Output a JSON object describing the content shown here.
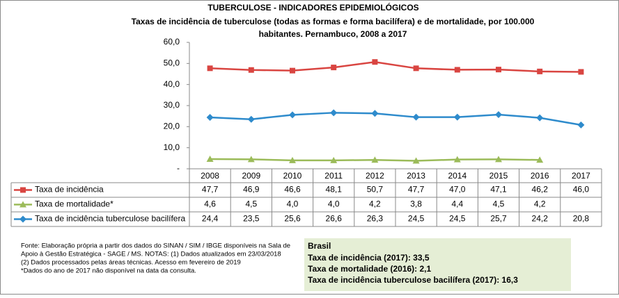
{
  "chart_data": {
    "type": "line",
    "title": "TUBERCULOSE - INDICADORES EPIDEMIOLÓGICOS",
    "subtitle": [
      "Taxas de incidência de tuberculose (todas as formas e forma bacilífera) e de mortalidade,  por 100.000",
      "habitantes. Pernambuco, 2008 a 2017"
    ],
    "categories": [
      "2008",
      "2009",
      "2010",
      "2011",
      "2012",
      "2013",
      "2014",
      "2015",
      "2016",
      "2017"
    ],
    "series": [
      {
        "name": "Taxa de incidência",
        "color": "#d94541",
        "marker": "square",
        "values": [
          47.7,
          46.9,
          46.6,
          48.1,
          50.7,
          47.7,
          47.0,
          47.1,
          46.2,
          46.0
        ],
        "value_labels": [
          "47,7",
          "46,9",
          "46,6",
          "48,1",
          "50,7",
          "47,7",
          "47,0",
          "47,1",
          "46,2",
          "46,0"
        ]
      },
      {
        "name": "Taxa de mortalidade*",
        "color": "#9bbb59",
        "marker": "triangle",
        "values": [
          4.6,
          4.5,
          4.0,
          4.0,
          4.2,
          3.8,
          4.4,
          4.5,
          4.2,
          null
        ],
        "value_labels": [
          "4,6",
          "4,5",
          "4,0",
          "4,0",
          "4,2",
          "3,8",
          "4,4",
          "4,5",
          "4,2",
          null
        ]
      },
      {
        "name": "Taxa de incidência tuberculose bacilífera",
        "color": "#2e8bcc",
        "marker": "diamond",
        "values": [
          24.4,
          23.5,
          25.6,
          26.6,
          26.3,
          24.5,
          24.5,
          25.7,
          24.2,
          20.8
        ],
        "value_labels": [
          "24,4",
          "23,5",
          "25,6",
          "26,6",
          "26,3",
          "24,5",
          "24,5",
          "25,7",
          "24,2",
          "20,8"
        ]
      }
    ],
    "ylim": [
      0,
      60
    ],
    "yticks": [
      {
        "value": 0,
        "label": "-"
      },
      {
        "value": 10,
        "label": "10,0"
      },
      {
        "value": 20,
        "label": "20,0"
      },
      {
        "value": 30,
        "label": "30,0"
      },
      {
        "value": 40,
        "label": "40,0"
      },
      {
        "value": 50,
        "label": "50,0"
      },
      {
        "value": 60,
        "label": "60,0"
      }
    ],
    "grid": false,
    "footnotes": [
      "Fonte: Elaboração própria a partir dos dados do SINAN / SIM / IBGE disponíveis na Sala de",
      "Apoio  à Gestão Estratégica - SAGE / MS. NOTAS: (1) Dados atualizados em 23/03/2018",
      "(2) Dados processados pelas áreas técnicas. Acesso em fevereiro de 2019",
      "*Dados do ano de 2017 não disponível na data da consulta."
    ],
    "brasil": {
      "title": "Brasil",
      "lines": [
        "Taxa  de incidência  (2017): 33,5",
        "Taxa de mortalidade (2016): 2,1",
        "Taxa de incidência  tuberculose bacilífera  (2017): 16,3"
      ]
    }
  }
}
